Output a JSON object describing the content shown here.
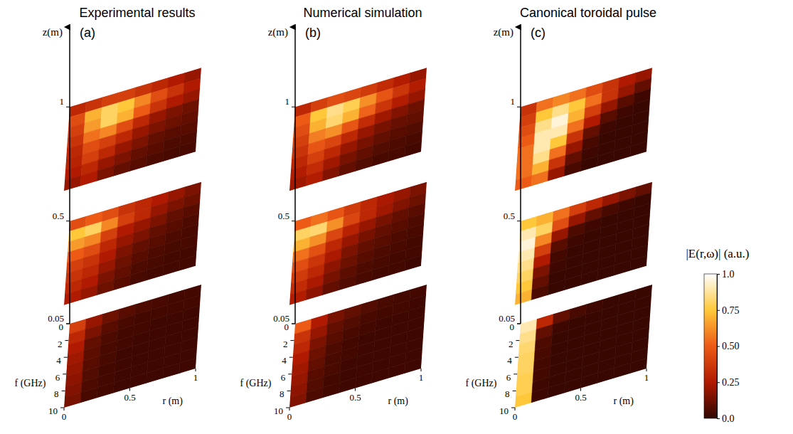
{
  "chart_data": {
    "type": "heatmap3d",
    "zlabel": "z(m)",
    "xlabel": "r (m)",
    "ylabel": "f (GHz)",
    "zlim": [
      0.05,
      1.35
    ],
    "zticks": [
      0.05,
      0.5,
      1
    ],
    "xlim": [
      0,
      1
    ],
    "xticks": [
      0,
      0.5,
      1
    ],
    "ylim": [
      0,
      10
    ],
    "yticks": [
      0,
      2,
      4,
      6,
      8,
      10
    ],
    "r_edges": [
      0,
      0.125,
      0.25,
      0.375,
      0.5,
      0.625,
      0.75,
      0.875,
      1
    ],
    "f_edges": [
      0,
      1.25,
      2.5,
      3.75,
      5,
      6.25,
      7.5,
      8.75,
      10
    ],
    "colorbar": {
      "title": "|E(r,ω)| (a.u.)",
      "range": [
        0,
        1
      ],
      "ticks": [
        {
          "value": 0,
          "label": "0.0"
        },
        0.25,
        {
          "value": 0.5,
          "label": "0.50"
        },
        0.75,
        {
          "value": 1,
          "label": "1.0"
        }
      ],
      "colors": [
        "#2e0600",
        "#b01a00",
        "#ec5a16",
        "#ffc83a",
        "#ffffff"
      ]
    },
    "panels": [
      {
        "title": "Experimental results",
        "label": "(a)",
        "planes": [
          {
            "z": 0.05,
            "values": [
              [
                0.4,
                0.2,
                0.12,
                0.08,
                0.06,
                0.05,
                0.04,
                0.04
              ],
              [
                0.3,
                0.15,
                0.08,
                0.05,
                0.04,
                0.04,
                0.04,
                0.04
              ],
              [
                0.25,
                0.1,
                0.06,
                0.04,
                0.04,
                0.03,
                0.03,
                0.03
              ],
              [
                0.22,
                0.09,
                0.05,
                0.04,
                0.03,
                0.03,
                0.03,
                0.03
              ],
              [
                0.2,
                0.08,
                0.05,
                0.03,
                0.03,
                0.03,
                0.03,
                0.03
              ],
              [
                0.18,
                0.07,
                0.04,
                0.03,
                0.03,
                0.03,
                0.03,
                0.03
              ],
              [
                0.16,
                0.06,
                0.04,
                0.03,
                0.03,
                0.03,
                0.03,
                0.03
              ],
              [
                0.14,
                0.05,
                0.04,
                0.03,
                0.03,
                0.03,
                0.03,
                0.03
              ]
            ]
          },
          {
            "z": 0.5,
            "values": [
              [
                0.45,
                0.5,
                0.45,
                0.35,
                0.3,
                0.25,
                0.2,
                0.15
              ],
              [
                0.75,
                0.8,
                0.6,
                0.4,
                0.3,
                0.2,
                0.15,
                0.12
              ],
              [
                0.65,
                0.6,
                0.4,
                0.25,
                0.2,
                0.15,
                0.1,
                0.08
              ],
              [
                0.5,
                0.45,
                0.3,
                0.2,
                0.15,
                0.1,
                0.08,
                0.06
              ],
              [
                0.4,
                0.35,
                0.25,
                0.15,
                0.1,
                0.08,
                0.06,
                0.05
              ],
              [
                0.35,
                0.3,
                0.2,
                0.12,
                0.08,
                0.06,
                0.05,
                0.05
              ],
              [
                0.3,
                0.25,
                0.15,
                0.1,
                0.06,
                0.05,
                0.04,
                0.04
              ],
              [
                0.25,
                0.2,
                0.12,
                0.08,
                0.05,
                0.04,
                0.04,
                0.04
              ]
            ]
          },
          {
            "z": 1,
            "values": [
              [
                0.3,
                0.35,
                0.4,
                0.4,
                0.35,
                0.3,
                0.25,
                0.2
              ],
              [
                0.45,
                0.7,
                0.8,
                0.75,
                0.6,
                0.45,
                0.35,
                0.25
              ],
              [
                0.4,
                0.65,
                0.8,
                0.7,
                0.5,
                0.35,
                0.25,
                0.2
              ],
              [
                0.35,
                0.55,
                0.6,
                0.45,
                0.3,
                0.2,
                0.15,
                0.12
              ],
              [
                0.3,
                0.45,
                0.4,
                0.3,
                0.2,
                0.15,
                0.12,
                0.1
              ],
              [
                0.28,
                0.4,
                0.3,
                0.2,
                0.15,
                0.1,
                0.08,
                0.08
              ],
              [
                0.25,
                0.3,
                0.2,
                0.15,
                0.1,
                0.08,
                0.06,
                0.06
              ],
              [
                0.2,
                0.25,
                0.15,
                0.1,
                0.08,
                0.06,
                0.05,
                0.05
              ]
            ]
          }
        ]
      },
      {
        "title": "Numerical simulation",
        "label": "(b)",
        "planes": [
          {
            "z": 0.05,
            "values": [
              [
                0.5,
                0.25,
                0.14,
                0.1,
                0.07,
                0.05,
                0.04,
                0.04
              ],
              [
                0.35,
                0.2,
                0.1,
                0.07,
                0.05,
                0.04,
                0.04,
                0.03
              ],
              [
                0.3,
                0.15,
                0.08,
                0.05,
                0.04,
                0.03,
                0.03,
                0.03
              ],
              [
                0.25,
                0.12,
                0.06,
                0.04,
                0.03,
                0.03,
                0.03,
                0.03
              ],
              [
                0.22,
                0.1,
                0.05,
                0.04,
                0.03,
                0.03,
                0.03,
                0.03
              ],
              [
                0.2,
                0.08,
                0.05,
                0.03,
                0.03,
                0.03,
                0.03,
                0.03
              ],
              [
                0.18,
                0.07,
                0.04,
                0.03,
                0.03,
                0.03,
                0.03,
                0.03
              ],
              [
                0.16,
                0.06,
                0.04,
                0.03,
                0.03,
                0.03,
                0.03,
                0.03
              ]
            ]
          },
          {
            "z": 0.5,
            "values": [
              [
                0.5,
                0.55,
                0.48,
                0.38,
                0.3,
                0.24,
                0.2,
                0.15
              ],
              [
                0.8,
                0.82,
                0.62,
                0.42,
                0.3,
                0.22,
                0.16,
                0.12
              ],
              [
                0.7,
                0.62,
                0.42,
                0.28,
                0.2,
                0.14,
                0.1,
                0.08
              ],
              [
                0.55,
                0.46,
                0.3,
                0.2,
                0.14,
                0.1,
                0.08,
                0.06
              ],
              [
                0.45,
                0.36,
                0.24,
                0.15,
                0.1,
                0.08,
                0.06,
                0.05
              ],
              [
                0.38,
                0.3,
                0.18,
                0.12,
                0.08,
                0.06,
                0.05,
                0.04
              ],
              [
                0.32,
                0.24,
                0.14,
                0.09,
                0.06,
                0.05,
                0.04,
                0.04
              ],
              [
                0.26,
                0.18,
                0.1,
                0.07,
                0.05,
                0.04,
                0.04,
                0.03
              ]
            ]
          },
          {
            "z": 1,
            "values": [
              [
                0.3,
                0.4,
                0.45,
                0.42,
                0.38,
                0.32,
                0.26,
                0.2
              ],
              [
                0.5,
                0.75,
                0.85,
                0.78,
                0.62,
                0.48,
                0.36,
                0.26
              ],
              [
                0.45,
                0.7,
                0.82,
                0.7,
                0.52,
                0.36,
                0.26,
                0.2
              ],
              [
                0.4,
                0.58,
                0.62,
                0.48,
                0.32,
                0.22,
                0.16,
                0.12
              ],
              [
                0.35,
                0.48,
                0.42,
                0.3,
                0.2,
                0.14,
                0.11,
                0.1
              ],
              [
                0.3,
                0.4,
                0.3,
                0.2,
                0.14,
                0.1,
                0.08,
                0.07
              ],
              [
                0.26,
                0.32,
                0.22,
                0.14,
                0.1,
                0.07,
                0.06,
                0.05
              ],
              [
                0.22,
                0.26,
                0.16,
                0.1,
                0.07,
                0.05,
                0.05,
                0.04
              ]
            ]
          }
        ]
      },
      {
        "title": "Canonical toroidal pulse",
        "label": "(c)",
        "planes": [
          {
            "z": 0.05,
            "values": [
              [
                0.9,
                0.3,
                0.1,
                0.05,
                0.03,
                0.02,
                0.02,
                0.02
              ],
              [
                0.85,
                0.1,
                0.03,
                0.02,
                0.02,
                0.02,
                0.02,
                0.02
              ],
              [
                0.82,
                0.06,
                0.02,
                0.02,
                0.02,
                0.02,
                0.02,
                0.02
              ],
              [
                0.8,
                0.05,
                0.02,
                0.02,
                0.02,
                0.02,
                0.02,
                0.02
              ],
              [
                0.8,
                0.04,
                0.02,
                0.02,
                0.02,
                0.02,
                0.02,
                0.02
              ],
              [
                0.78,
                0.04,
                0.02,
                0.02,
                0.02,
                0.02,
                0.02,
                0.02
              ],
              [
                0.78,
                0.03,
                0.02,
                0.02,
                0.02,
                0.02,
                0.02,
                0.02
              ],
              [
                0.75,
                0.03,
                0.02,
                0.02,
                0.02,
                0.02,
                0.02,
                0.02
              ]
            ]
          },
          {
            "z": 0.5,
            "values": [
              [
                0.75,
                0.7,
                0.55,
                0.4,
                0.3,
                0.2,
                0.15,
                0.1
              ],
              [
                0.9,
                0.8,
                0.45,
                0.2,
                0.1,
                0.05,
                0.03,
                0.02
              ],
              [
                0.95,
                0.6,
                0.2,
                0.06,
                0.03,
                0.02,
                0.02,
                0.02
              ],
              [
                0.9,
                0.4,
                0.08,
                0.03,
                0.02,
                0.02,
                0.02,
                0.02
              ],
              [
                0.85,
                0.25,
                0.04,
                0.02,
                0.02,
                0.02,
                0.02,
                0.02
              ],
              [
                0.8,
                0.15,
                0.03,
                0.02,
                0.02,
                0.02,
                0.02,
                0.02
              ],
              [
                0.75,
                0.1,
                0.02,
                0.02,
                0.02,
                0.02,
                0.02,
                0.02
              ],
              [
                0.7,
                0.06,
                0.02,
                0.02,
                0.02,
                0.02,
                0.02,
                0.02
              ]
            ]
          },
          {
            "z": 1,
            "values": [
              [
                0.35,
                0.55,
                0.6,
                0.55,
                0.45,
                0.35,
                0.25,
                0.2
              ],
              [
                0.4,
                0.75,
                0.85,
                0.75,
                0.55,
                0.35,
                0.2,
                0.1
              ],
              [
                0.45,
                0.85,
                0.95,
                0.7,
                0.4,
                0.2,
                0.08,
                0.03
              ],
              [
                0.5,
                0.9,
                0.9,
                0.55,
                0.25,
                0.08,
                0.03,
                0.02
              ],
              [
                0.55,
                0.9,
                0.75,
                0.35,
                0.1,
                0.03,
                0.02,
                0.02
              ],
              [
                0.55,
                0.85,
                0.55,
                0.2,
                0.05,
                0.02,
                0.02,
                0.02
              ],
              [
                0.55,
                0.7,
                0.35,
                0.1,
                0.03,
                0.02,
                0.02,
                0.02
              ],
              [
                0.5,
                0.55,
                0.2,
                0.05,
                0.02,
                0.02,
                0.02,
                0.02
              ]
            ]
          }
        ]
      }
    ]
  }
}
